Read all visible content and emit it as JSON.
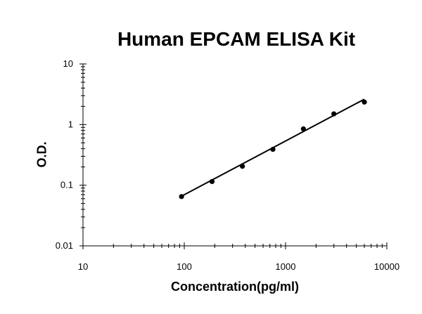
{
  "chart_data": {
    "type": "scatter",
    "title": "Human EPCAM ELISA Kit",
    "xlabel": "Concentration(pg/ml)",
    "ylabel": "O.D.",
    "x_scale": "log",
    "y_scale": "log",
    "xlim": [
      10,
      10000
    ],
    "ylim": [
      0.01,
      10
    ],
    "x_ticks": [
      "10",
      "100",
      "1000",
      "10000"
    ],
    "y_ticks": [
      "0.01",
      "0.1",
      "1",
      "10"
    ],
    "grid": false,
    "legend": "none",
    "series": [
      {
        "points": [
          {
            "x": 94,
            "y": 0.065
          },
          {
            "x": 188,
            "y": 0.115
          },
          {
            "x": 375,
            "y": 0.205
          },
          {
            "x": 750,
            "y": 0.39
          },
          {
            "x": 1500,
            "y": 0.85
          },
          {
            "x": 3000,
            "y": 1.5
          },
          {
            "x": 6000,
            "y": 2.35
          }
        ],
        "trendline": {
          "x": [
            94,
            6000
          ],
          "y": [
            0.066,
            2.62
          ]
        }
      }
    ],
    "colors": {
      "marker": "#000000",
      "line": "#000000",
      "axis": "#000000"
    }
  }
}
